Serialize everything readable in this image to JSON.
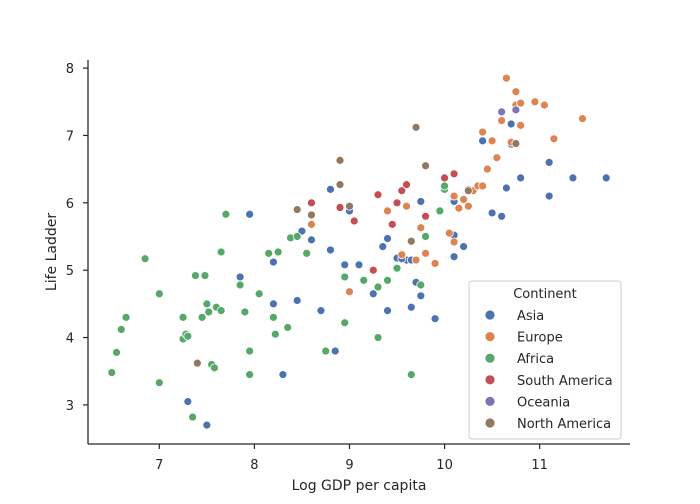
{
  "colors": {
    "Asia": "#4c72b0",
    "Europe": "#dd8452",
    "Africa": "#55a868",
    "South America": "#c44e52",
    "Oceania": "#8172b3",
    "North America": "#937860"
  },
  "chart_data": {
    "type": "scatter",
    "xlabel": "Log GDP per capita",
    "ylabel": "Life Ladder",
    "xlim": [
      6.25,
      11.95
    ],
    "ylim": [
      2.42,
      8.12
    ],
    "xticks": [
      7,
      8,
      9,
      10,
      11
    ],
    "yticks": [
      3,
      4,
      5,
      6,
      7,
      8
    ],
    "grid": false,
    "legend": {
      "title": "Continent",
      "placement": "bottom-right"
    },
    "series": [
      {
        "name": "Asia",
        "points": [
          [
            7.3,
            3.05
          ],
          [
            7.5,
            2.7
          ],
          [
            8.3,
            3.45
          ],
          [
            8.85,
            3.8
          ],
          [
            7.85,
            4.9
          ],
          [
            8.2,
            4.5
          ],
          [
            8.45,
            4.55
          ],
          [
            8.7,
            4.4
          ],
          [
            8.8,
            5.3
          ],
          [
            8.2,
            5.12
          ],
          [
            8.5,
            5.58
          ],
          [
            8.6,
            5.45
          ],
          [
            7.95,
            5.83
          ],
          [
            8.8,
            6.2
          ],
          [
            8.95,
            5.08
          ],
          [
            9.1,
            5.08
          ],
          [
            9.0,
            5.88
          ],
          [
            9.25,
            4.65
          ],
          [
            9.35,
            5.35
          ],
          [
            9.4,
            4.4
          ],
          [
            9.4,
            5.47
          ],
          [
            9.5,
            5.18
          ],
          [
            9.6,
            5.15
          ],
          [
            9.65,
            5.15
          ],
          [
            9.7,
            4.82
          ],
          [
            9.75,
            4.62
          ],
          [
            9.75,
            6.02
          ],
          [
            9.65,
            4.45
          ],
          [
            9.9,
            4.28
          ],
          [
            9.55,
            5.17
          ],
          [
            10.1,
            5.2
          ],
          [
            10.2,
            5.35
          ],
          [
            10.1,
            6.02
          ],
          [
            10.1,
            5.52
          ],
          [
            10.4,
            6.92
          ],
          [
            10.5,
            5.85
          ],
          [
            10.6,
            5.8
          ],
          [
            10.65,
            6.22
          ],
          [
            10.8,
            6.37
          ],
          [
            10.7,
            6.87
          ],
          [
            10.7,
            7.17
          ],
          [
            11.1,
            6.6
          ],
          [
            11.1,
            6.1
          ],
          [
            11.35,
            6.37
          ],
          [
            11.7,
            6.37
          ]
        ]
      },
      {
        "name": "Europe",
        "points": [
          [
            8.6,
            5.68
          ],
          [
            9.0,
            4.68
          ],
          [
            9.4,
            5.88
          ],
          [
            9.55,
            5.23
          ],
          [
            9.6,
            5.95
          ],
          [
            9.7,
            5.15
          ],
          [
            9.75,
            5.63
          ],
          [
            9.8,
            5.25
          ],
          [
            9.9,
            5.1
          ],
          [
            10.05,
            5.55
          ],
          [
            10.1,
            5.42
          ],
          [
            10.1,
            6.1
          ],
          [
            10.15,
            5.92
          ],
          [
            10.2,
            6.05
          ],
          [
            10.25,
            5.95
          ],
          [
            10.25,
            6.2
          ],
          [
            10.3,
            6.18
          ],
          [
            10.35,
            6.25
          ],
          [
            10.4,
            6.25
          ],
          [
            10.4,
            7.05
          ],
          [
            10.45,
            6.5
          ],
          [
            10.5,
            6.92
          ],
          [
            10.55,
            6.67
          ],
          [
            10.6,
            7.22
          ],
          [
            10.65,
            7.85
          ],
          [
            10.7,
            6.9
          ],
          [
            10.75,
            7.45
          ],
          [
            10.75,
            7.65
          ],
          [
            10.8,
            7.48
          ],
          [
            10.8,
            7.15
          ],
          [
            10.95,
            7.5
          ],
          [
            11.05,
            7.45
          ],
          [
            11.15,
            6.95
          ],
          [
            11.45,
            7.25
          ]
        ]
      },
      {
        "name": "Africa",
        "points": [
          [
            6.5,
            3.48
          ],
          [
            6.55,
            3.78
          ],
          [
            6.6,
            4.12
          ],
          [
            6.65,
            4.3
          ],
          [
            6.85,
            5.17
          ],
          [
            7.0,
            4.65
          ],
          [
            7.0,
            3.33
          ],
          [
            7.25,
            4.3
          ],
          [
            7.25,
            3.98
          ],
          [
            7.28,
            4.05
          ],
          [
            7.3,
            4.02
          ],
          [
            7.35,
            2.82
          ],
          [
            7.38,
            4.92
          ],
          [
            7.45,
            4.3
          ],
          [
            7.48,
            4.92
          ],
          [
            7.5,
            4.5
          ],
          [
            7.52,
            4.38
          ],
          [
            7.55,
            3.6
          ],
          [
            7.58,
            3.55
          ],
          [
            7.6,
            4.45
          ],
          [
            7.65,
            4.4
          ],
          [
            7.65,
            5.27
          ],
          [
            7.7,
            5.83
          ],
          [
            7.85,
            4.78
          ],
          [
            7.9,
            4.38
          ],
          [
            7.95,
            3.45
          ],
          [
            7.95,
            3.8
          ],
          [
            8.05,
            4.65
          ],
          [
            8.15,
            5.25
          ],
          [
            8.2,
            4.3
          ],
          [
            8.22,
            4.05
          ],
          [
            8.25,
            5.27
          ],
          [
            8.35,
            4.15
          ],
          [
            8.38,
            5.48
          ],
          [
            8.45,
            5.5
          ],
          [
            8.55,
            5.25
          ],
          [
            8.75,
            3.8
          ],
          [
            8.95,
            4.22
          ],
          [
            8.95,
            4.9
          ],
          [
            9.15,
            4.85
          ],
          [
            9.3,
            4.0
          ],
          [
            9.3,
            4.75
          ],
          [
            9.4,
            4.85
          ],
          [
            9.5,
            5.03
          ],
          [
            9.65,
            3.45
          ],
          [
            9.75,
            4.78
          ],
          [
            9.8,
            5.5
          ],
          [
            9.95,
            5.88
          ],
          [
            10.0,
            6.2
          ],
          [
            10.0,
            6.25
          ]
        ]
      },
      {
        "name": "South America",
        "points": [
          [
            8.6,
            6.0
          ],
          [
            8.9,
            5.93
          ],
          [
            9.05,
            5.73
          ],
          [
            9.25,
            5.0
          ],
          [
            9.3,
            6.12
          ],
          [
            9.45,
            5.68
          ],
          [
            9.5,
            6.0
          ],
          [
            9.55,
            6.18
          ],
          [
            9.6,
            6.27
          ],
          [
            9.8,
            5.8
          ],
          [
            10.0,
            6.37
          ],
          [
            10.1,
            6.43
          ]
        ]
      },
      {
        "name": "Oceania",
        "points": [
          [
            10.6,
            7.35
          ],
          [
            10.75,
            7.38
          ]
        ]
      },
      {
        "name": "North America",
        "points": [
          [
            7.4,
            3.62
          ],
          [
            8.45,
            5.9
          ],
          [
            8.6,
            5.82
          ],
          [
            8.9,
            6.27
          ],
          [
            8.9,
            6.63
          ],
          [
            9.0,
            5.95
          ],
          [
            9.65,
            5.43
          ],
          [
            9.7,
            7.12
          ],
          [
            9.8,
            6.55
          ],
          [
            10.25,
            6.18
          ],
          [
            10.75,
            6.88
          ]
        ]
      }
    ]
  }
}
